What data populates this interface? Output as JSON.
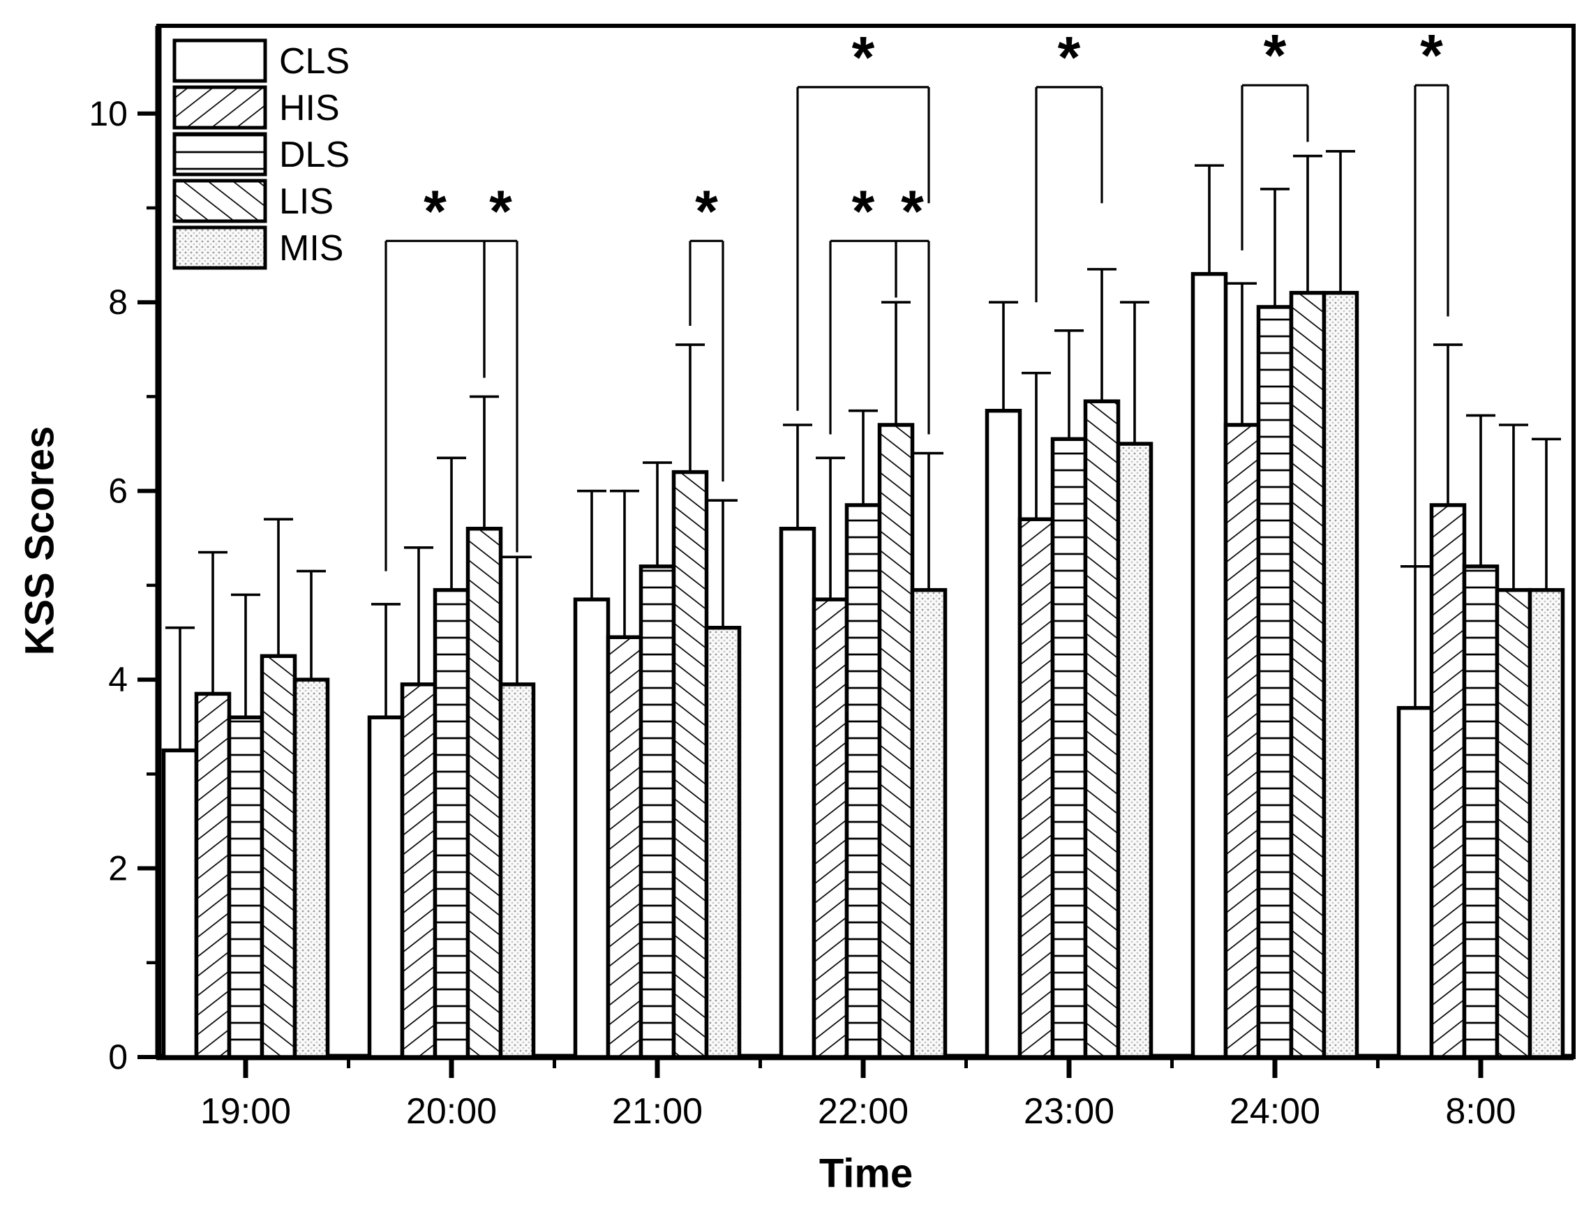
{
  "page": {
    "background": "#ffffff",
    "ink": "#000000"
  },
  "chart_data": {
    "type": "bar",
    "title": "",
    "xlabel": "Time",
    "ylabel": "KSS Scores",
    "categories": [
      "19:00",
      "20:00",
      "21:00",
      "22:00",
      "23:00",
      "24:00",
      "8:00"
    ],
    "ylim": [
      0,
      10.93
    ],
    "yticks": [
      0,
      2,
      4,
      6,
      8,
      10
    ],
    "grid": false,
    "legend_position": "top-left-inside",
    "error_bars": "upper-only",
    "series": [
      {
        "name": "CLS",
        "pattern": "plain",
        "values": [
          3.25,
          3.6,
          4.85,
          5.6,
          6.85,
          8.3,
          3.7
        ],
        "err_top": [
          4.55,
          4.8,
          6.0,
          6.7,
          8.0,
          9.45,
          5.2
        ]
      },
      {
        "name": "HIS",
        "pattern": "hatch-forward",
        "values": [
          3.85,
          3.95,
          4.45,
          4.85,
          5.7,
          6.7,
          5.85
        ],
        "err_top": [
          5.35,
          5.4,
          6.0,
          6.35,
          7.25,
          8.2,
          7.55
        ]
      },
      {
        "name": "DLS",
        "pattern": "hatch-horizontal",
        "values": [
          3.6,
          4.95,
          5.2,
          5.85,
          6.55,
          7.95,
          5.2
        ],
        "err_top": [
          4.9,
          6.35,
          6.3,
          6.85,
          7.7,
          9.2,
          6.8
        ]
      },
      {
        "name": "LIS",
        "pattern": "hatch-back",
        "values": [
          4.25,
          5.6,
          6.2,
          6.7,
          6.95,
          8.1,
          4.95
        ],
        "err_top": [
          5.7,
          7.0,
          7.55,
          8.0,
          8.35,
          9.55,
          6.7
        ]
      },
      {
        "name": "MIS",
        "pattern": "dots",
        "values": [
          4.0,
          3.95,
          4.55,
          4.95,
          6.5,
          8.1,
          4.95
        ],
        "err_top": [
          5.15,
          5.3,
          5.9,
          6.4,
          8.0,
          9.6,
          6.55
        ]
      }
    ],
    "significance": [
      {
        "category": "20:00",
        "from": "CLS",
        "to": "LIS",
        "height": 8.65,
        "ends": [
          5.15,
          7.2
        ],
        "label": "*"
      },
      {
        "category": "20:00",
        "from": "LIS",
        "to": "MIS",
        "height": 8.65,
        "ends": [
          7.2,
          5.35
        ],
        "label": "*"
      },
      {
        "category": "21:00",
        "from": "LIS",
        "to": "MIS",
        "height": 8.65,
        "ends": [
          7.75,
          6.1
        ],
        "label": "*"
      },
      {
        "category": "22:00",
        "from": "CLS",
        "to": "MIS",
        "height": 10.28,
        "ends": [
          6.85,
          9.05
        ],
        "label": "*"
      },
      {
        "category": "22:00",
        "from": "HIS",
        "to": "LIS",
        "height": 8.65,
        "ends": [
          6.6,
          8.05
        ],
        "label": "*"
      },
      {
        "category": "22:00",
        "from": "LIS",
        "to": "MIS",
        "height": 8.65,
        "ends": [
          8.05,
          6.6
        ],
        "label": "*"
      },
      {
        "category": "23:00",
        "from": "HIS",
        "to": "LIS",
        "height": 10.28,
        "ends": [
          8.0,
          9.05
        ],
        "label": "*"
      },
      {
        "category": "24:00",
        "from": "HIS",
        "to": "LIS",
        "height": 10.3,
        "ends": [
          8.55,
          9.7
        ],
        "label": "*"
      },
      {
        "category": "8:00",
        "from": "CLS",
        "to": "HIS",
        "height": 10.3,
        "ends": [
          5.2,
          7.85
        ],
        "label": "*"
      }
    ]
  }
}
